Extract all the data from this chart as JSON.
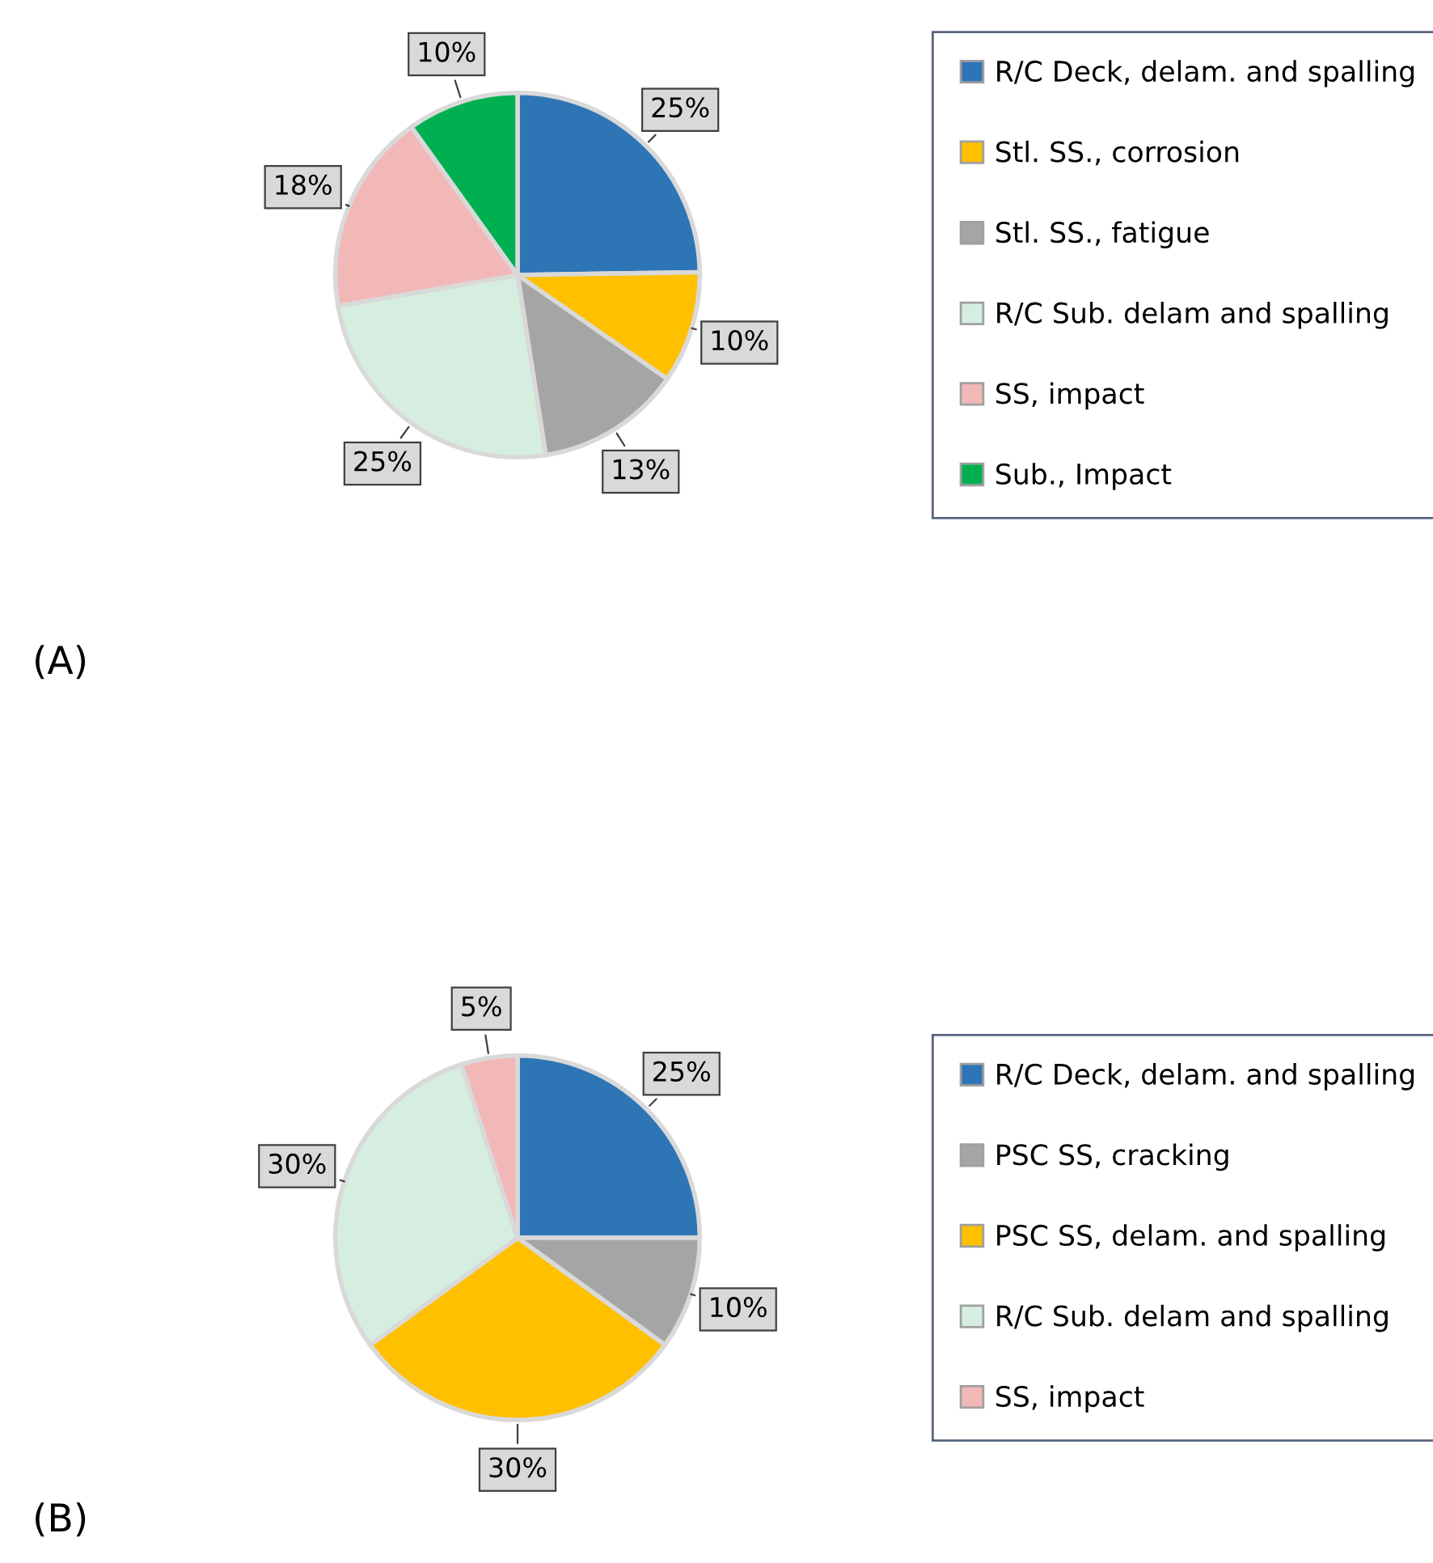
{
  "chart_data": [
    {
      "type": "pie",
      "categories": [
        "R/C Deck, delam. and spalling",
        "Stl. SS., corrosion",
        "Stl. SS., fatigue",
        "R/C Sub. delam and spalling",
        "SS, impact",
        "Sub., Impact"
      ],
      "values": [
        25,
        10,
        13,
        25,
        18,
        10
      ],
      "colors": [
        "#2e75b6",
        "#ffc000",
        "#a5a5a5",
        "#d6eedf",
        "#f2b8b8",
        "#00b050"
      ],
      "value_labels": [
        "25%",
        "10%",
        "13%",
        "25%",
        "18%",
        "10%"
      ],
      "legend": "right",
      "annotations": [
        "(A)"
      ]
    },
    {
      "type": "pie",
      "categories": [
        "R/C Deck, delam. and spalling",
        "PSC SS, cracking",
        "PSC SS, delam. and spalling",
        "R/C Sub. delam and spalling",
        "SS, impact"
      ],
      "values": [
        25,
        10,
        30,
        30,
        5
      ],
      "colors": [
        "#2e75b6",
        "#a5a5a5",
        "#ffc000",
        "#d6eedf",
        "#f2b8b8"
      ],
      "value_labels": [
        "25%",
        "10%",
        "30%",
        "30%",
        "5%"
      ],
      "legend": "right",
      "annotations": [
        "(B)"
      ]
    }
  ]
}
